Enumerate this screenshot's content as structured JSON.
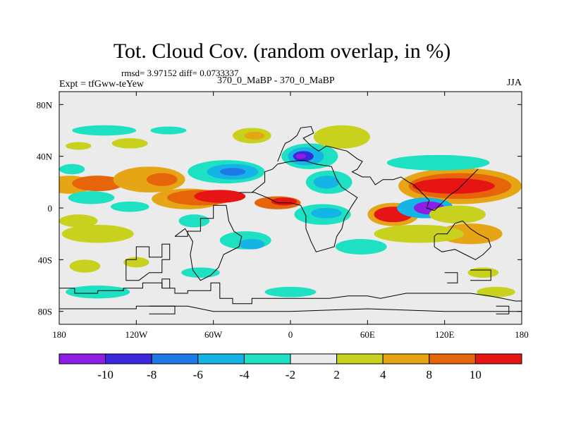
{
  "chart_data": {
    "type": "heatmap",
    "title": "Tot. Cloud Cov. (random overlap, in %)",
    "stats": "rmsd= 3.97152 diff= 0.0733337",
    "experiment": "Expt = tfGww-teYew",
    "subtitle": "370_0_MaBP - 370_0_MaBP",
    "season": "JJA",
    "xlim": [
      -180,
      180
    ],
    "ylim": [
      -90,
      90
    ],
    "x_ticks": [
      {
        "value": -180,
        "label": "180"
      },
      {
        "value": -120,
        "label": "120W"
      },
      {
        "value": -60,
        "label": "60W"
      },
      {
        "value": 0,
        "label": "0"
      },
      {
        "value": 60,
        "label": "60E"
      },
      {
        "value": 120,
        "label": "120E"
      },
      {
        "value": 180,
        "label": "180"
      }
    ],
    "y_ticks": [
      {
        "value": 80,
        "label": "80N"
      },
      {
        "value": 40,
        "label": "40N"
      },
      {
        "value": 0,
        "label": "0"
      },
      {
        "value": -40,
        "label": "40S"
      },
      {
        "value": -80,
        "label": "80S"
      }
    ],
    "colorbar": {
      "levels": [
        "-10",
        "-8",
        "-6",
        "-4",
        "-2",
        "2",
        "4",
        "8",
        "10"
      ],
      "colors": [
        "#8c1ee6",
        "#3c28dc",
        "#1e78e6",
        "#14b4e6",
        "#1ee1c3",
        "#ebebeb",
        "#c8d21e",
        "#e6a514",
        "#e6640a",
        "#e61414"
      ]
    },
    "anomaly_patches": [
      {
        "lon": -172,
        "lat": 18,
        "rx": 18,
        "ry": 7,
        "level": "4 to 8",
        "color": "#e6a514"
      },
      {
        "lon": -150,
        "lat": 19,
        "rx": 20,
        "ry": 6,
        "level": "8 to 10",
        "color": "#e6640a"
      },
      {
        "lon": -110,
        "lat": 22,
        "rx": 28,
        "ry": 10,
        "level": "4 to 8",
        "color": "#e6a514"
      },
      {
        "lon": -100,
        "lat": 22,
        "rx": 12,
        "ry": 5,
        "level": "8 to 10",
        "color": "#e6640a"
      },
      {
        "lon": -170,
        "lat": 30,
        "rx": 10,
        "ry": 4,
        "level": "-4 to -2",
        "color": "#1ee1c3"
      },
      {
        "lon": -145,
        "lat": 60,
        "rx": 25,
        "ry": 4,
        "level": "-4 to -2",
        "color": "#1ee1c3"
      },
      {
        "lon": -95,
        "lat": 60,
        "rx": 14,
        "ry": 3,
        "level": "-4 to -2",
        "color": "#1ee1c3"
      },
      {
        "lon": -125,
        "lat": 50,
        "rx": 14,
        "ry": 4,
        "level": "2 to 4",
        "color": "#c8d21e"
      },
      {
        "lon": -165,
        "lat": 48,
        "rx": 10,
        "ry": 3,
        "level": "2 to 4",
        "color": "#c8d21e"
      },
      {
        "lon": -155,
        "lat": 8,
        "rx": 18,
        "ry": 5,
        "level": "-4 to -2",
        "color": "#1ee1c3"
      },
      {
        "lon": -125,
        "lat": 1,
        "rx": 15,
        "ry": 4,
        "level": "-4 to -2",
        "color": "#1ee1c3"
      },
      {
        "lon": -80,
        "lat": 7,
        "rx": 28,
        "ry": 8,
        "level": "4 to 8",
        "color": "#e6a514"
      },
      {
        "lon": -70,
        "lat": 8,
        "rx": 26,
        "ry": 6,
        "level": "8 to 10",
        "color": "#e6640a"
      },
      {
        "lon": -55,
        "lat": 9,
        "rx": 20,
        "ry": 5,
        "level": "> 10",
        "color": "#e61414"
      },
      {
        "lon": -10,
        "lat": 4,
        "rx": 18,
        "ry": 5,
        "level": "8 to 10",
        "color": "#e6640a"
      },
      {
        "lon": -5,
        "lat": 5,
        "rx": 10,
        "ry": 3,
        "level": "> 10",
        "color": "#e61414"
      },
      {
        "lon": -50,
        "lat": 28,
        "rx": 30,
        "ry": 9,
        "level": "-4 to -2",
        "color": "#1ee1c3"
      },
      {
        "lon": -45,
        "lat": 28,
        "rx": 20,
        "ry": 6,
        "level": "-6 to -4",
        "color": "#14b4e6"
      },
      {
        "lon": -45,
        "lat": 28,
        "rx": 10,
        "ry": 3,
        "level": "-8 to -6",
        "color": "#1e78e6"
      },
      {
        "lon": -30,
        "lat": 56,
        "rx": 15,
        "ry": 6,
        "level": "2 to 4",
        "color": "#c8d21e"
      },
      {
        "lon": -28,
        "lat": 56,
        "rx": 8,
        "ry": 3,
        "level": "4 to 8",
        "color": "#e6a514"
      },
      {
        "lon": 15,
        "lat": 40,
        "rx": 22,
        "ry": 10,
        "level": "-4 to -2",
        "color": "#1ee1c3"
      },
      {
        "lon": 12,
        "lat": 40,
        "rx": 14,
        "ry": 7,
        "level": "-6 to -4",
        "color": "#14b4e6"
      },
      {
        "lon": 10,
        "lat": 40,
        "rx": 8,
        "ry": 4,
        "level": "-10 to -8",
        "color": "#3c28dc"
      },
      {
        "lon": 8,
        "lat": 40,
        "rx": 4,
        "ry": 2,
        "level": "< -10",
        "color": "#8c1ee6"
      },
      {
        "lon": 40,
        "lat": 55,
        "rx": 15,
        "ry": 6,
        "level": "4 to 8",
        "color": "#e6a514"
      },
      {
        "lon": 40,
        "lat": 55,
        "rx": 22,
        "ry": 9,
        "level": "2 to 4",
        "color": "#c8d21e"
      },
      {
        "lon": 30,
        "lat": 20,
        "rx": 18,
        "ry": 9,
        "level": "-4 to -2",
        "color": "#1ee1c3"
      },
      {
        "lon": 28,
        "lat": 20,
        "rx": 10,
        "ry": 5,
        "level": "-6 to -4",
        "color": "#14b4e6"
      },
      {
        "lon": 25,
        "lat": -5,
        "rx": 22,
        "ry": 8,
        "level": "-4 to -2",
        "color": "#1ee1c3"
      },
      {
        "lon": 28,
        "lat": -4,
        "rx": 12,
        "ry": 4,
        "level": "-6 to -4",
        "color": "#14b4e6"
      },
      {
        "lon": 132,
        "lat": 17,
        "rx": 48,
        "ry": 14,
        "level": "4 to 8",
        "color": "#e6a514"
      },
      {
        "lon": 132,
        "lat": 17,
        "rx": 40,
        "ry": 10,
        "level": "8 to 10",
        "color": "#e6640a"
      },
      {
        "lon": 127,
        "lat": 17,
        "rx": 32,
        "ry": 6,
        "level": "> 10",
        "color": "#e61414"
      },
      {
        "lon": 115,
        "lat": 35,
        "rx": 40,
        "ry": 6,
        "level": "-4 to -2",
        "color": "#1ee1c3"
      },
      {
        "lon": 80,
        "lat": -5,
        "rx": 20,
        "ry": 9,
        "level": "4 to 8",
        "color": "#e6a514"
      },
      {
        "lon": 80,
        "lat": -5,
        "rx": 15,
        "ry": 6,
        "level": "> 10",
        "color": "#e61414"
      },
      {
        "lon": 105,
        "lat": 0,
        "rx": 22,
        "ry": 8,
        "level": "-6 to -4",
        "color": "#14b4e6"
      },
      {
        "lon": 108,
        "lat": 0,
        "rx": 12,
        "ry": 5,
        "level": "< -10",
        "color": "#8c1ee6"
      },
      {
        "lon": 130,
        "lat": -5,
        "rx": 22,
        "ry": 7,
        "level": "2 to 4",
        "color": "#c8d21e"
      },
      {
        "lon": 140,
        "lat": -20,
        "rx": 25,
        "ry": 8,
        "level": "4 to 8",
        "color": "#e6a514"
      },
      {
        "lon": 100,
        "lat": -20,
        "rx": 35,
        "ry": 7,
        "level": "2 to 4",
        "color": "#c8d21e"
      },
      {
        "lon": 55,
        "lat": -30,
        "rx": 20,
        "ry": 6,
        "level": "-4 to -2",
        "color": "#1ee1c3"
      },
      {
        "lon": -35,
        "lat": -25,
        "rx": 20,
        "ry": 7,
        "level": "-4 to -2",
        "color": "#1ee1c3"
      },
      {
        "lon": -30,
        "lat": -28,
        "rx": 10,
        "ry": 4,
        "level": "-6 to -4",
        "color": "#14b4e6"
      },
      {
        "lon": -150,
        "lat": -20,
        "rx": 28,
        "ry": 7,
        "level": "2 to 4",
        "color": "#c8d21e"
      },
      {
        "lon": -165,
        "lat": -10,
        "rx": 15,
        "ry": 5,
        "level": "2 to 4",
        "color": "#c8d21e"
      },
      {
        "lon": -75,
        "lat": -10,
        "rx": 12,
        "ry": 5,
        "level": "-4 to -2",
        "color": "#1ee1c3"
      },
      {
        "lon": -160,
        "lat": -45,
        "rx": 12,
        "ry": 5,
        "level": "2 to 4",
        "color": "#c8d21e"
      },
      {
        "lon": -120,
        "lat": -42,
        "rx": 10,
        "ry": 4,
        "level": "2 to 4",
        "color": "#c8d21e"
      },
      {
        "lon": 150,
        "lat": -50,
        "rx": 12,
        "ry": 4,
        "level": "2 to 4",
        "color": "#c8d21e"
      },
      {
        "lon": -150,
        "lat": -65,
        "rx": 25,
        "ry": 5,
        "level": "-4 to -2",
        "color": "#1ee1c3"
      },
      {
        "lon": -70,
        "lat": -50,
        "rx": 15,
        "ry": 4,
        "level": "-4 to -2",
        "color": "#1ee1c3"
      },
      {
        "lon": 0,
        "lat": -65,
        "rx": 20,
        "ry": 4,
        "level": "-4 to -2",
        "color": "#1ee1c3"
      },
      {
        "lon": 160,
        "lat": -65,
        "rx": 15,
        "ry": 4,
        "level": "2 to 4",
        "color": "#c8d21e"
      }
    ],
    "coastlines": [
      [
        [
          -180,
          -62
        ],
        [
          -168,
          -62
        ],
        [
          -168,
          -66
        ],
        [
          -150,
          -66
        ],
        [
          -150,
          -64
        ],
        [
          -130,
          -64
        ],
        [
          -130,
          -62
        ],
        [
          -115,
          -62
        ],
        [
          -115,
          -58
        ],
        [
          -100,
          -58
        ],
        [
          -100,
          -62
        ],
        [
          -90,
          -62
        ],
        [
          -90,
          -66
        ],
        [
          -80,
          -66
        ],
        [
          -80,
          -64
        ],
        [
          -62,
          -64
        ],
        [
          -62,
          -58
        ],
        [
          -55,
          -58
        ],
        [
          -55,
          -64
        ],
        [
          -55,
          -70
        ],
        [
          -45,
          -70
        ],
        [
          -45,
          -74
        ],
        [
          -30,
          -74
        ],
        [
          -30,
          -70
        ],
        [
          -10,
          -70
        ],
        [
          0,
          -70
        ],
        [
          15,
          -70
        ],
        [
          30,
          -70
        ],
        [
          45,
          -68
        ],
        [
          60,
          -68
        ],
        [
          70,
          -70
        ],
        [
          90,
          -66
        ],
        [
          110,
          -66
        ],
        [
          120,
          -66
        ],
        [
          140,
          -66
        ],
        [
          155,
          -68
        ],
        [
          165,
          -70
        ],
        [
          175,
          -72
        ],
        [
          180,
          -72
        ]
      ],
      [
        [
          -180,
          -78
        ],
        [
          -120,
          -78
        ],
        [
          -120,
          -76
        ],
        [
          -80,
          -76
        ],
        [
          -60,
          -80
        ],
        [
          0,
          -80
        ],
        [
          60,
          -78
        ],
        [
          120,
          -80
        ],
        [
          180,
          -80
        ]
      ],
      [
        [
          -128,
          -40
        ],
        [
          -120,
          -40
        ],
        [
          -120,
          -30
        ],
        [
          -110,
          -30
        ],
        [
          -110,
          -38
        ],
        [
          -100,
          -38
        ],
        [
          -100,
          -28
        ],
        [
          -94,
          -28
        ],
        [
          -94,
          -40
        ],
        [
          -100,
          -40
        ],
        [
          -100,
          -50
        ],
        [
          -110,
          -50
        ],
        [
          -118,
          -56
        ],
        [
          -128,
          -56
        ],
        [
          -128,
          -40
        ]
      ],
      [
        [
          -100,
          -62
        ],
        [
          -100,
          -55
        ],
        [
          -94,
          -55
        ],
        [
          -94,
          -62
        ]
      ],
      [
        [
          -90,
          -22
        ],
        [
          -80,
          -22
        ],
        [
          -80,
          -18
        ],
        [
          -70,
          -18
        ],
        [
          -70,
          -8
        ],
        [
          -60,
          -8
        ],
        [
          -60,
          2
        ],
        [
          -50,
          2
        ],
        [
          -48,
          -10
        ],
        [
          -44,
          -18
        ],
        [
          -38,
          -22
        ],
        [
          -40,
          -30
        ],
        [
          -52,
          -36
        ],
        [
          -56,
          -46
        ],
        [
          -62,
          -52
        ],
        [
          -70,
          -56
        ],
        [
          -76,
          -48
        ],
        [
          -78,
          -36
        ],
        [
          -76,
          -26
        ],
        [
          -82,
          -16
        ],
        [
          -90,
          -22
        ]
      ],
      [
        [
          -40,
          12
        ],
        [
          -30,
          12
        ],
        [
          -20,
          20
        ],
        [
          -20,
          28
        ],
        [
          -14,
          30
        ],
        [
          -10,
          34
        ],
        [
          0,
          36
        ],
        [
          10,
          37
        ],
        [
          20,
          34
        ],
        [
          32,
          32
        ],
        [
          36,
          22
        ],
        [
          40,
          16
        ],
        [
          46,
          12
        ],
        [
          52,
          8
        ],
        [
          48,
          2
        ],
        [
          42,
          -8
        ],
        [
          40,
          -16
        ],
        [
          36,
          -22
        ],
        [
          34,
          -30
        ],
        [
          20,
          -34
        ],
        [
          16,
          -26
        ],
        [
          12,
          -16
        ],
        [
          12,
          -6
        ],
        [
          8,
          2
        ],
        [
          0,
          4
        ],
        [
          -10,
          4
        ],
        [
          -18,
          8
        ],
        [
          -28,
          12
        ],
        [
          -40,
          12
        ]
      ],
      [
        [
          -10,
          36
        ],
        [
          -6,
          46
        ],
        [
          -4,
          50
        ],
        [
          0,
          52
        ],
        [
          5,
          56
        ],
        [
          8,
          62
        ],
        [
          16,
          63
        ],
        [
          18,
          58
        ],
        [
          10,
          54
        ],
        [
          16,
          48
        ],
        [
          22,
          44
        ],
        [
          28,
          48
        ],
        [
          36,
          46
        ],
        [
          44,
          44
        ],
        [
          52,
          38
        ],
        [
          56,
          36
        ],
        [
          52,
          30
        ],
        [
          48,
          28
        ],
        [
          56,
          24
        ],
        [
          62,
          24
        ],
        [
          66,
          18
        ],
        [
          72,
          22
        ],
        [
          80,
          22
        ],
        [
          86,
          24
        ],
        [
          92,
          20
        ],
        [
          96,
          18
        ],
        [
          102,
          12
        ],
        [
          108,
          6
        ],
        [
          106,
          0
        ],
        [
          112,
          -2
        ],
        [
          118,
          4
        ],
        [
          124,
          10
        ],
        [
          130,
          14
        ],
        [
          134,
          18
        ],
        [
          140,
          24
        ],
        [
          146,
          30
        ]
      ],
      [
        [
          114,
          -20
        ],
        [
          122,
          -20
        ],
        [
          128,
          -12
        ],
        [
          134,
          -10
        ],
        [
          140,
          -16
        ],
        [
          146,
          -20
        ],
        [
          154,
          -24
        ],
        [
          156,
          -30
        ],
        [
          150,
          -36
        ],
        [
          144,
          -40
        ],
        [
          136,
          -36
        ],
        [
          128,
          -32
        ],
        [
          118,
          -34
        ],
        [
          112,
          -30
        ],
        [
          112,
          -22
        ],
        [
          114,
          -20
        ]
      ],
      [
        [
          120,
          -50
        ],
        [
          130,
          -50
        ],
        [
          130,
          -58
        ],
        [
          122,
          -58
        ]
      ],
      [
        [
          140,
          -48
        ],
        [
          156,
          -48
        ],
        [
          156,
          -56
        ],
        [
          140,
          -56
        ]
      ],
      [
        [
          160,
          -76
        ],
        [
          170,
          -76
        ],
        [
          170,
          -82
        ],
        [
          160,
          -82
        ]
      ],
      [
        [
          -110,
          -76
        ],
        [
          -90,
          -76
        ],
        [
          -90,
          -82
        ],
        [
          -110,
          -82
        ]
      ]
    ]
  }
}
